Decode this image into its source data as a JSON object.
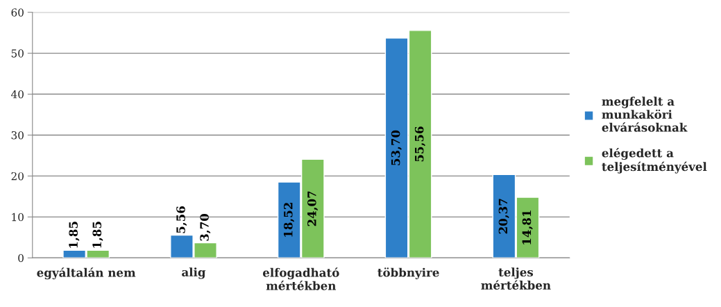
{
  "chart_data": {
    "type": "bar",
    "categories": [
      "egyáltalán nem",
      "alig",
      "elfogadható\nmértékben",
      "többnyire",
      "teljes\nmértékben"
    ],
    "series": [
      {
        "name": "megfelelt a\nmunkaköri\nelvárásoknak",
        "color": "#2e80c9",
        "values": [
          1.85,
          5.56,
          18.52,
          53.7,
          20.37
        ],
        "value_labels": [
          "1,85",
          "5,56",
          "18,52",
          "53,70",
          "20,37"
        ]
      },
      {
        "name": "elégedett a\nteljesítményével",
        "color": "#7dc35b",
        "values": [
          1.85,
          3.7,
          24.07,
          55.56,
          14.81
        ],
        "value_labels": [
          "1,85",
          "3,70",
          "24,07",
          "55,56",
          "14,81"
        ]
      }
    ],
    "ylim": [
      0,
      60
    ],
    "yticks": [
      0,
      10,
      20,
      30,
      40,
      50,
      60
    ],
    "grid": "y",
    "legend": "right"
  }
}
